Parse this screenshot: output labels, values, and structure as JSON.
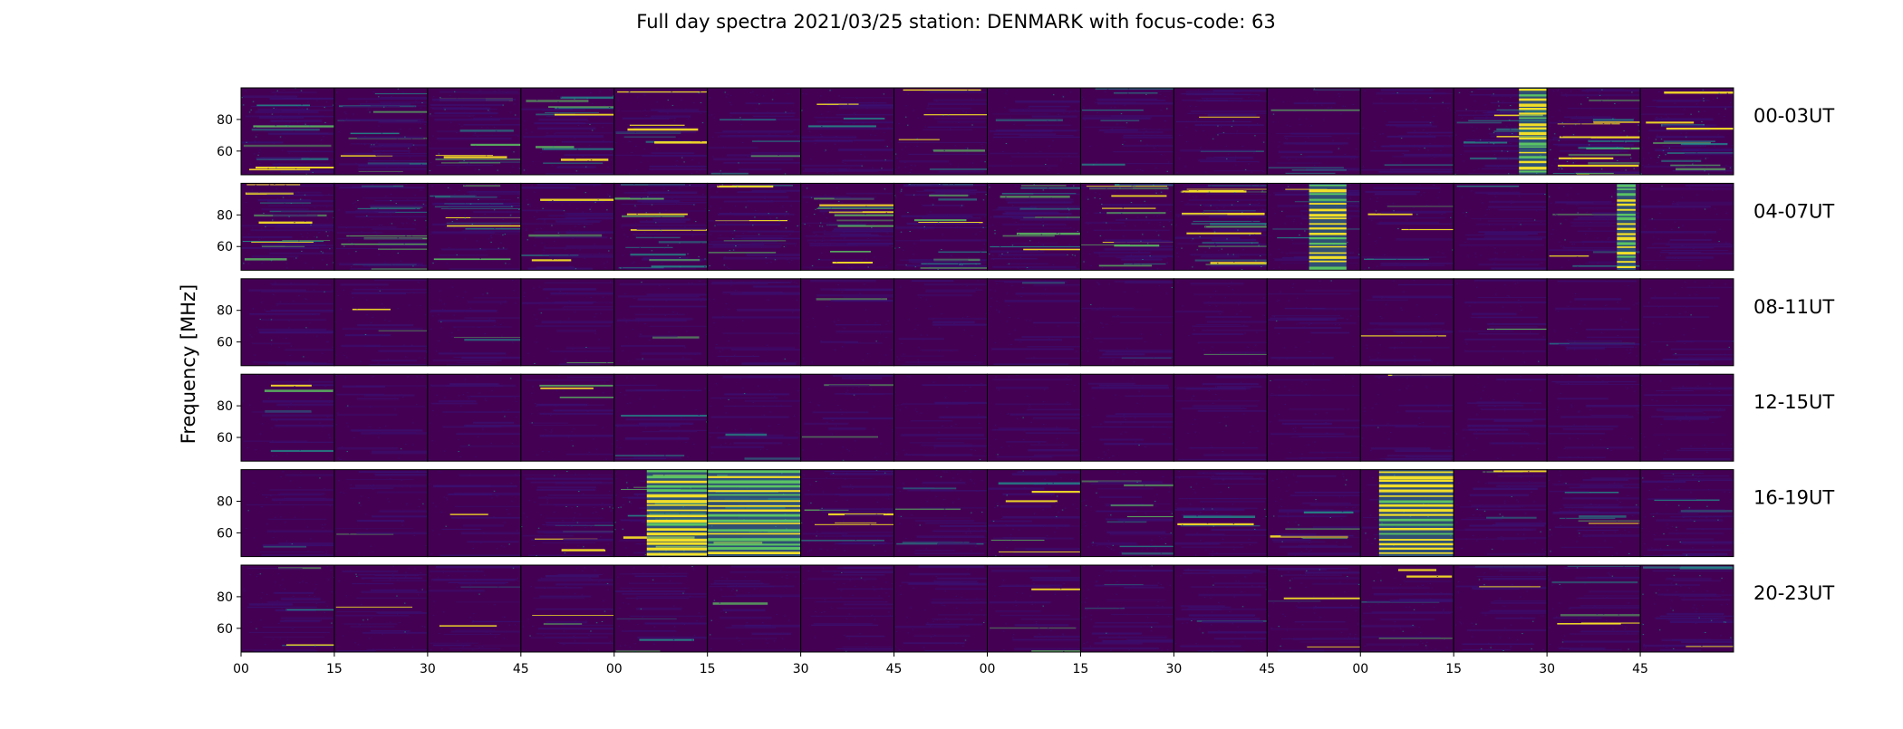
{
  "chart_data": {
    "type": "heatmap",
    "title": "Full day spectra 2021/03/25 station: DENMARK with focus-code: 63",
    "ylabel": "Frequency [MHz]",
    "xlabel": "",
    "ylim": [
      45,
      100
    ],
    "y_ticks": [
      "60",
      "80"
    ],
    "y_tick_values": [
      60,
      80
    ],
    "x_ticks": [
      "00",
      "15",
      "30",
      "45",
      "00",
      "15",
      "30",
      "45",
      "00",
      "15",
      "30",
      "45",
      "00",
      "15",
      "30",
      "45"
    ],
    "colormap": "viridis",
    "colors": {
      "background": "#440154",
      "low": "#3b0f70",
      "mid": "#21908d",
      "high": "#5dc963",
      "peak": "#fde725",
      "divider": "#000000"
    },
    "panels_per_row": 16,
    "rows": [
      {
        "label": "00-03UT",
        "activity": [
          0.55,
          0.55,
          0.45,
          0.4,
          0.3,
          0.25,
          0.35,
          0.25,
          0.2,
          0.3,
          0.35,
          0.25,
          0.25,
          0.6,
          0.65,
          0.65
        ],
        "bursts": [
          {
            "panel": 13,
            "start": 0.7,
            "end": 1.0,
            "intensity": 0.95
          }
        ]
      },
      {
        "label": "04-07UT",
        "activity": [
          0.65,
          0.5,
          0.5,
          0.5,
          0.55,
          0.55,
          0.6,
          0.65,
          0.6,
          0.6,
          0.7,
          0.4,
          0.2,
          0.2,
          0.35,
          0.2
        ],
        "bursts": [
          {
            "panel": 11,
            "start": 0.45,
            "end": 0.85,
            "intensity": 0.9
          },
          {
            "panel": 14,
            "start": 0.75,
            "end": 0.95,
            "intensity": 0.9
          }
        ]
      },
      {
        "label": "08-11UT",
        "activity": [
          0.2,
          0.12,
          0.12,
          0.12,
          0.1,
          0.1,
          0.08,
          0.08,
          0.08,
          0.08,
          0.08,
          0.08,
          0.08,
          0.08,
          0.08,
          0.08
        ],
        "bursts": []
      },
      {
        "label": "12-15UT",
        "activity": [
          0.1,
          0.1,
          0.1,
          0.1,
          0.12,
          0.12,
          0.08,
          0.08,
          0.1,
          0.08,
          0.08,
          0.08,
          0.1,
          0.08,
          0.08,
          0.1
        ],
        "bursts": []
      },
      {
        "label": "16-19UT",
        "activity": [
          0.1,
          0.1,
          0.1,
          0.4,
          0.45,
          0.5,
          0.35,
          0.3,
          0.3,
          0.35,
          0.3,
          0.3,
          0.35,
          0.3,
          0.3,
          0.35
        ],
        "bursts": [
          {
            "panel": 4,
            "start": 0.35,
            "end": 1.0,
            "intensity": 0.9
          },
          {
            "panel": 5,
            "start": 0.0,
            "end": 1.0,
            "intensity": 0.75
          },
          {
            "panel": 12,
            "start": 0.2,
            "end": 1.0,
            "intensity": 1.0
          }
        ]
      },
      {
        "label": "20-23UT",
        "activity": [
          0.25,
          0.25,
          0.2,
          0.2,
          0.2,
          0.2,
          0.2,
          0.2,
          0.2,
          0.2,
          0.2,
          0.25,
          0.25,
          0.25,
          0.25,
          0.35
        ],
        "bursts": []
      }
    ]
  }
}
